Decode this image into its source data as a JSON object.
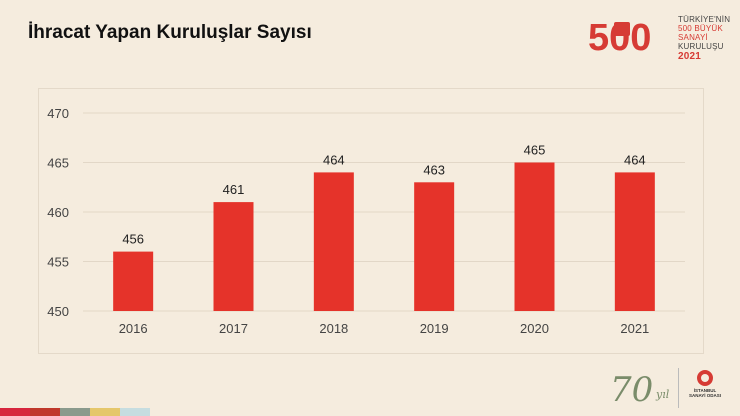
{
  "page": {
    "title": "İhracat Yapan Kuruluşlar Sayısı"
  },
  "brand": {
    "logo_500_number": "500",
    "logo_500_lines": [
      "TÜRKİYE'NİN",
      "500 BÜYÜK SANAYİ",
      "KURULUŞU"
    ],
    "logo_500_year": "2021",
    "anniversary_number": "70",
    "anniversary_suffix": "yıl",
    "chamber_name": [
      "İSTANBUL",
      "SANAYİ ODASI"
    ],
    "accent_color": "#e5332a",
    "strip_colors": [
      "#d7263d",
      "#c0392b",
      "#8a9a8c",
      "#e5c76b",
      "#c6dde0"
    ]
  },
  "chart_data": {
    "type": "bar",
    "categories": [
      "2016",
      "2017",
      "2018",
      "2019",
      "2020",
      "2021"
    ],
    "values": [
      456,
      461,
      464,
      463,
      465,
      464
    ],
    "data_labels": [
      "456",
      "461",
      "464",
      "463",
      "465",
      "464"
    ],
    "ylim": [
      450,
      470
    ],
    "yticks": [
      450,
      455,
      460,
      465,
      470
    ],
    "ytick_labels": [
      "450",
      "455",
      "460",
      "465",
      "470"
    ],
    "grid": true,
    "bar_color": "#e5332a",
    "title": "",
    "xlabel": "",
    "ylabel": ""
  }
}
